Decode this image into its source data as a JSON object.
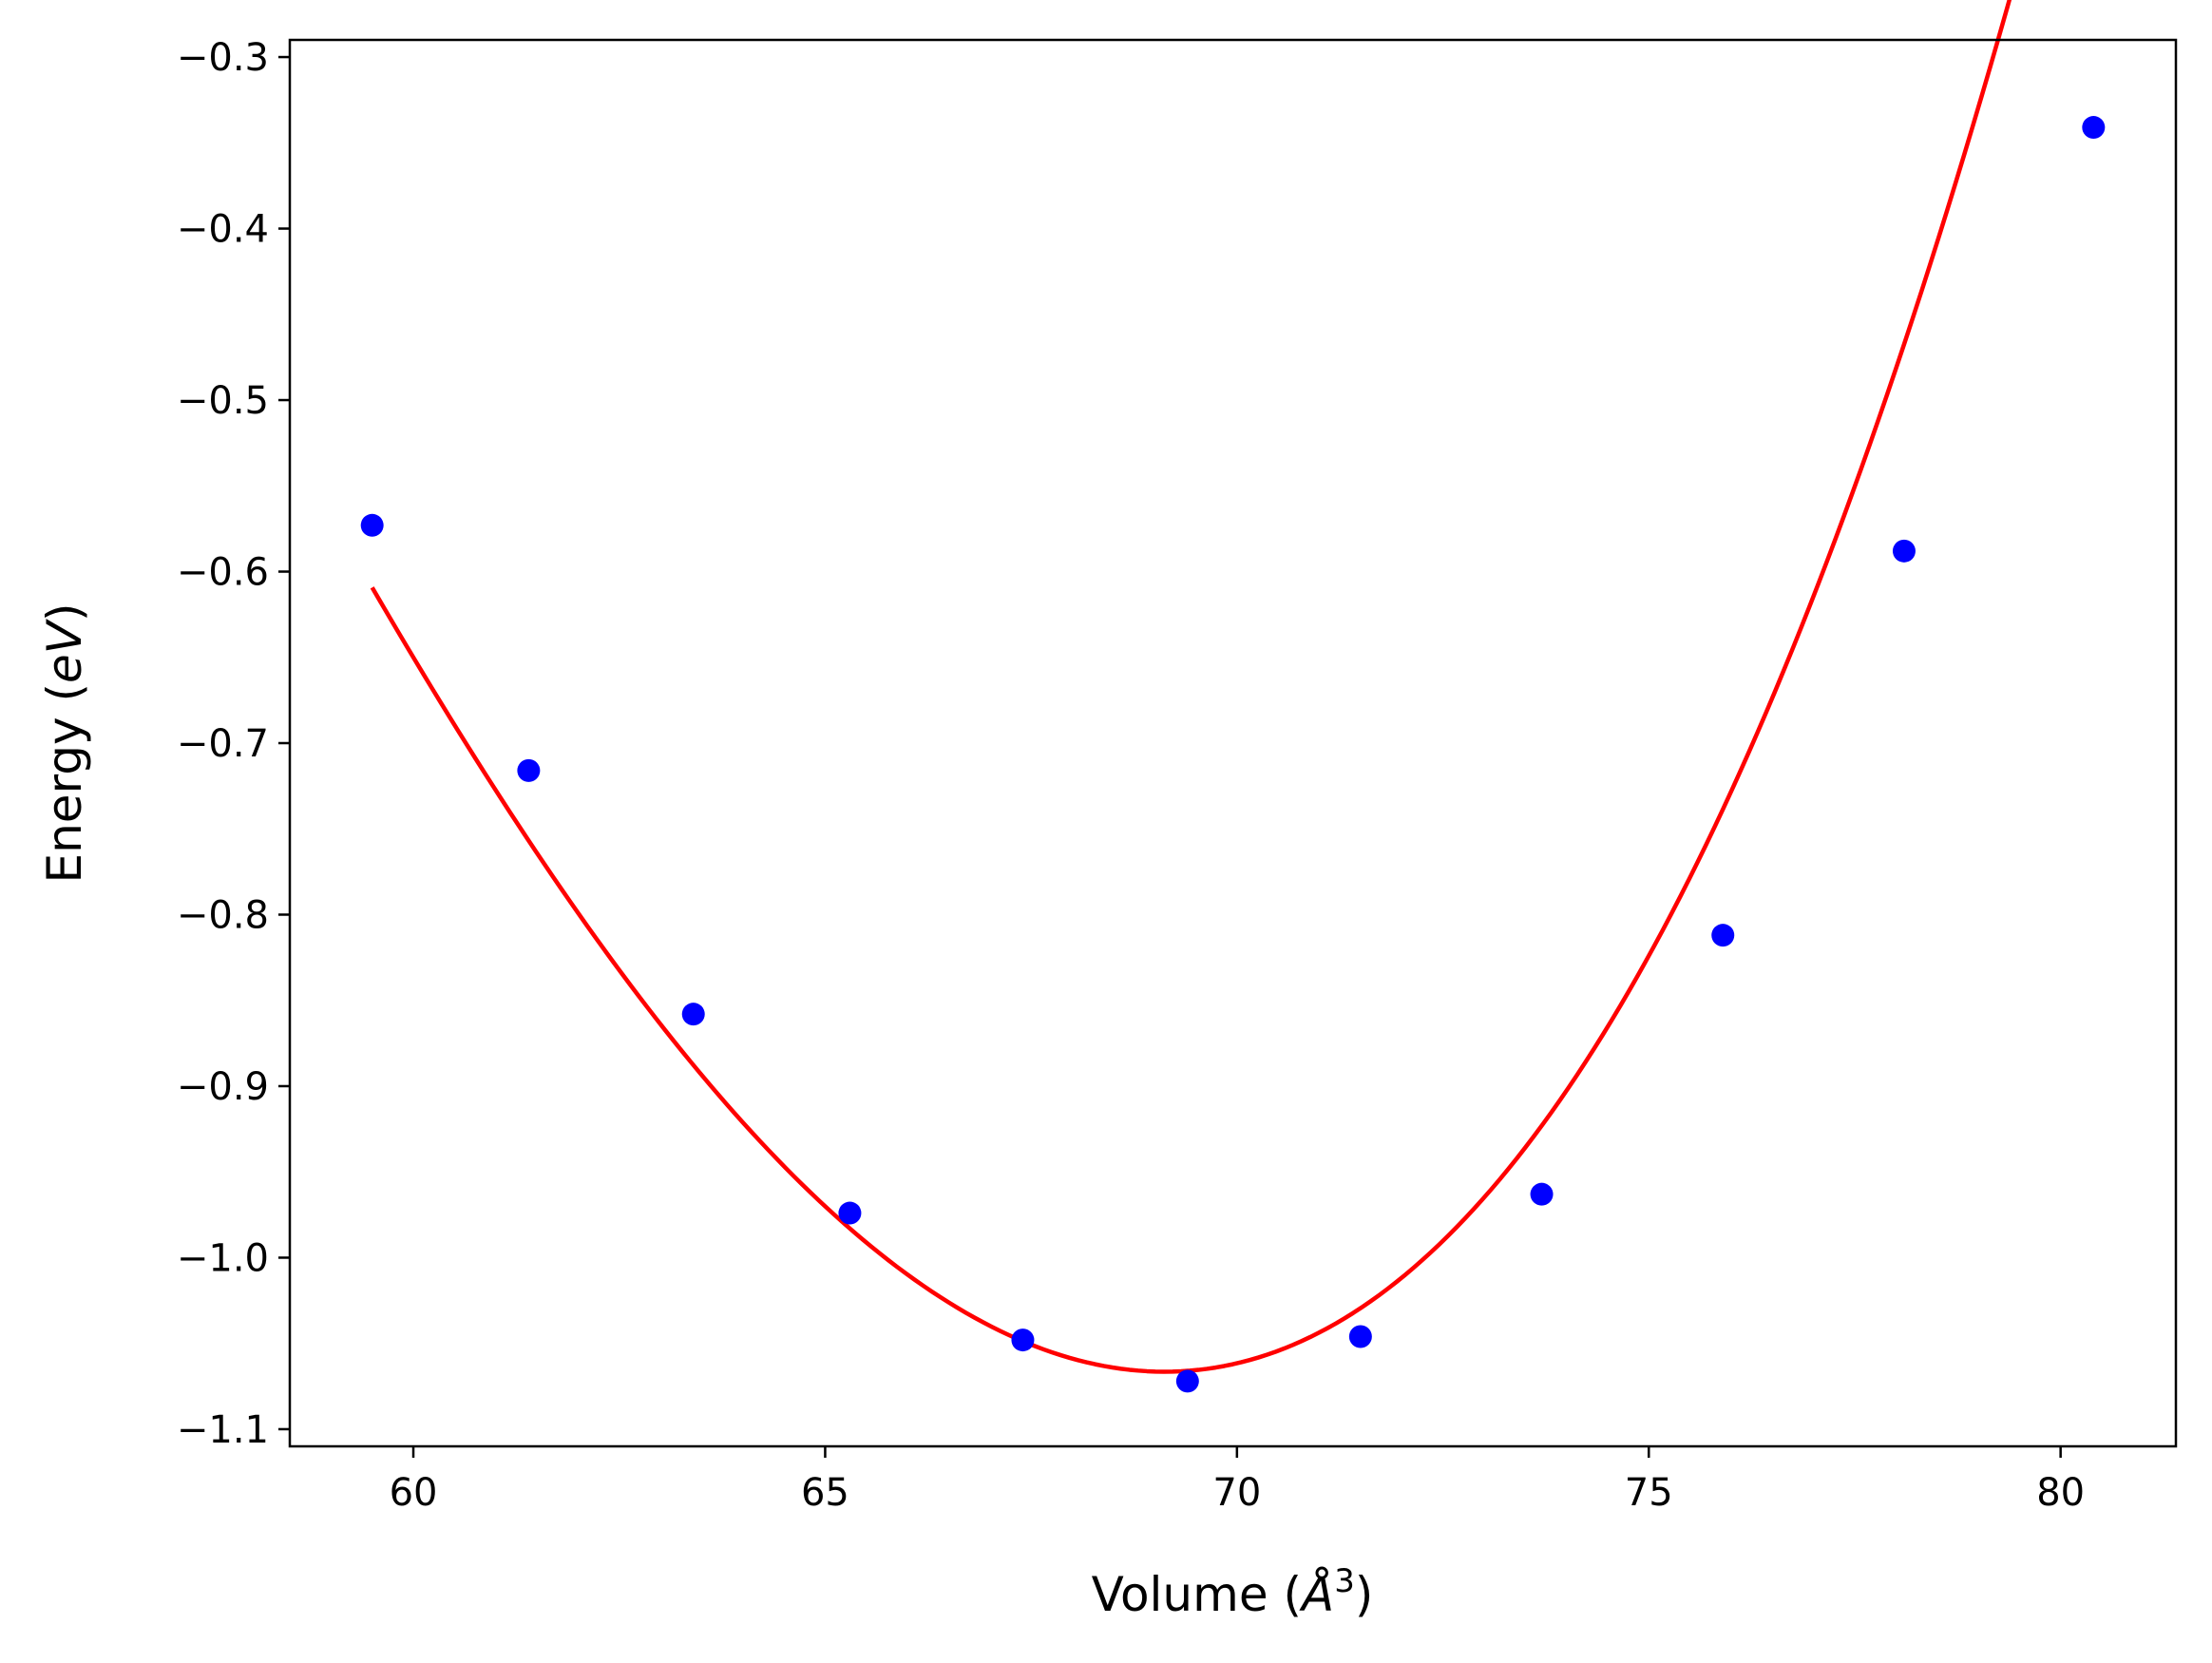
{
  "chart_data": {
    "type": "scatter",
    "xlabel": "Volume (Å³)",
    "xlabel_parts": {
      "pre": "Volume (",
      "unit": "Å",
      "exp": "3",
      "post": ")"
    },
    "ylabel": "Energy (eV)",
    "ylabel_parts": {
      "pre": "Energy (",
      "unit": "eV",
      "post": ")"
    },
    "xlim": [
      58.5,
      81.4
    ],
    "ylim": [
      -1.11,
      -0.29
    ],
    "xticks": [
      60,
      65,
      70,
      75,
      80
    ],
    "xtick_labels": [
      "60",
      "65",
      "70",
      "75",
      "80"
    ],
    "yticks": [
      -1.1,
      -1.0,
      -0.9,
      -0.8,
      -0.7,
      -0.6,
      -0.5,
      -0.4,
      -0.3
    ],
    "ytick_labels": [
      "−1.1",
      "−1.0",
      "−0.9",
      "−0.8",
      "−0.7",
      "−0.6",
      "−0.5",
      "−0.4",
      "−0.3"
    ],
    "grid": false,
    "legend": "none",
    "series": [
      {
        "kind": "scatter",
        "color": "#0000ff",
        "x": [
          59.5,
          61.4,
          63.4,
          65.3,
          67.4,
          69.4,
          71.5,
          73.7,
          75.9,
          78.1,
          80.4
        ],
        "y": [
          -0.573,
          -0.716,
          -0.858,
          -0.974,
          -1.048,
          -1.072,
          -1.046,
          -0.963,
          -0.812,
          -0.588,
          -0.341
        ]
      },
      {
        "kind": "line",
        "color": "#ff0000",
        "fit": "cubic",
        "x_range": [
          59.5,
          80.4
        ],
        "coeffs_centered": {
          "x0": 69.4,
          "a": -1.066,
          "b": 0.0035,
          "c": 0.00634,
          "d": 0.000134
        }
      }
    ]
  }
}
